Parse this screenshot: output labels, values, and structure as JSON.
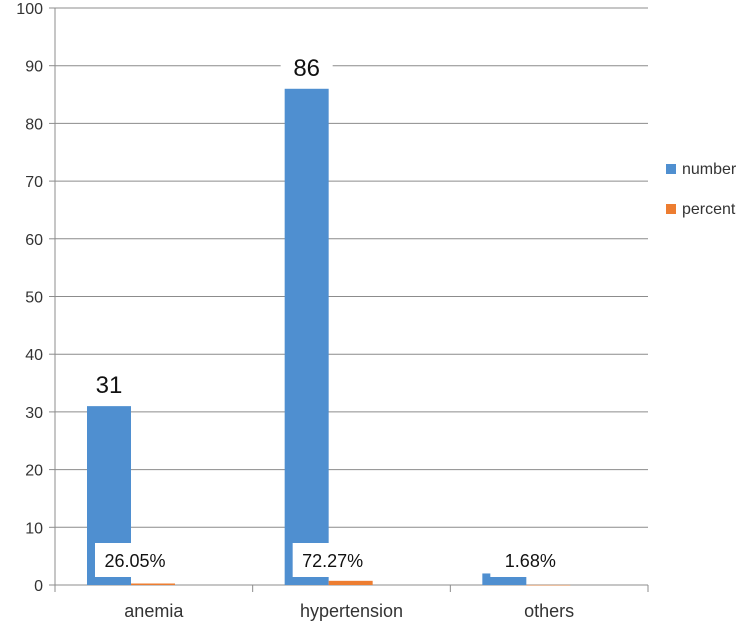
{
  "chart_data": {
    "type": "bar",
    "categories": [
      "anemia",
      "hypertension",
      "others"
    ],
    "series": [
      {
        "name": "number",
        "values": [
          31,
          86,
          2
        ],
        "labels": [
          "31",
          "86",
          "2"
        ],
        "color": "#4f8fd0"
      },
      {
        "name": "percent",
        "values": [
          0.2605,
          0.7227,
          0.0168
        ],
        "labels": [
          "26.05%",
          "72.27%",
          "1.68%"
        ],
        "color": "#ed7d31"
      }
    ],
    "yticks": [
      "0",
      "10",
      "20",
      "30",
      "40",
      "50",
      "60",
      "70",
      "80",
      "90",
      "100"
    ],
    "ylim": [
      0,
      100
    ],
    "grid": true,
    "legend_position": "right"
  }
}
